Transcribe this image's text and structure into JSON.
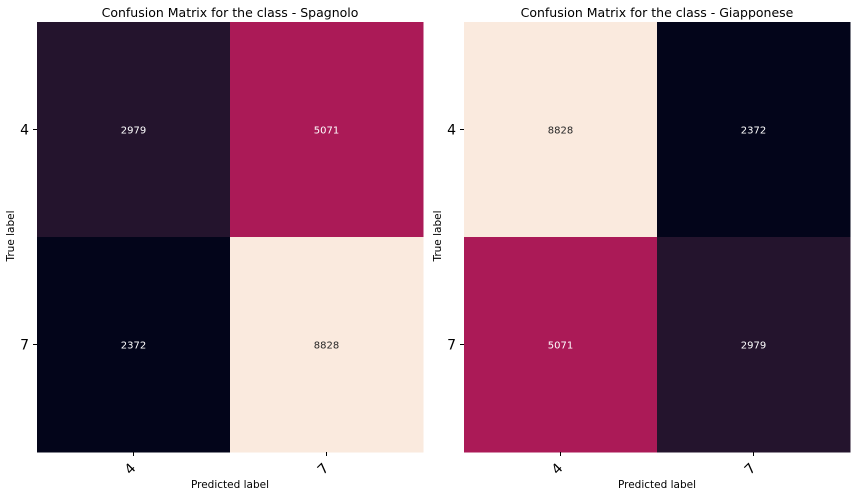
{
  "chart_data": [
    {
      "type": "heatmap",
      "title": "Confusion Matrix for the class - Spagnolo",
      "xlabel": "Predicted label",
      "ylabel": "True label",
      "x_categories": [
        "4",
        "7"
      ],
      "y_categories": [
        "4",
        "7"
      ],
      "values": [
        [
          2979,
          5071
        ],
        [
          2372,
          8828
        ]
      ],
      "colorbar": false,
      "colormap": "rocket",
      "grid": false
    },
    {
      "type": "heatmap",
      "title": "Confusion Matrix for the class - Giapponese",
      "xlabel": "Predicted label",
      "ylabel": "True label",
      "x_categories": [
        "4",
        "7"
      ],
      "y_categories": [
        "4",
        "7"
      ],
      "values": [
        [
          8828,
          2372
        ],
        [
          5071,
          2979
        ]
      ],
      "colorbar": false,
      "colormap": "rocket",
      "grid": false
    }
  ],
  "cell_colors": {
    "2372": "#03051a",
    "2979": "#24142d",
    "5071": "#ab1a57",
    "8828": "#faeade"
  },
  "annotation_colors": {
    "dark_bg": "#ffffff",
    "light_bg": "#262626"
  }
}
